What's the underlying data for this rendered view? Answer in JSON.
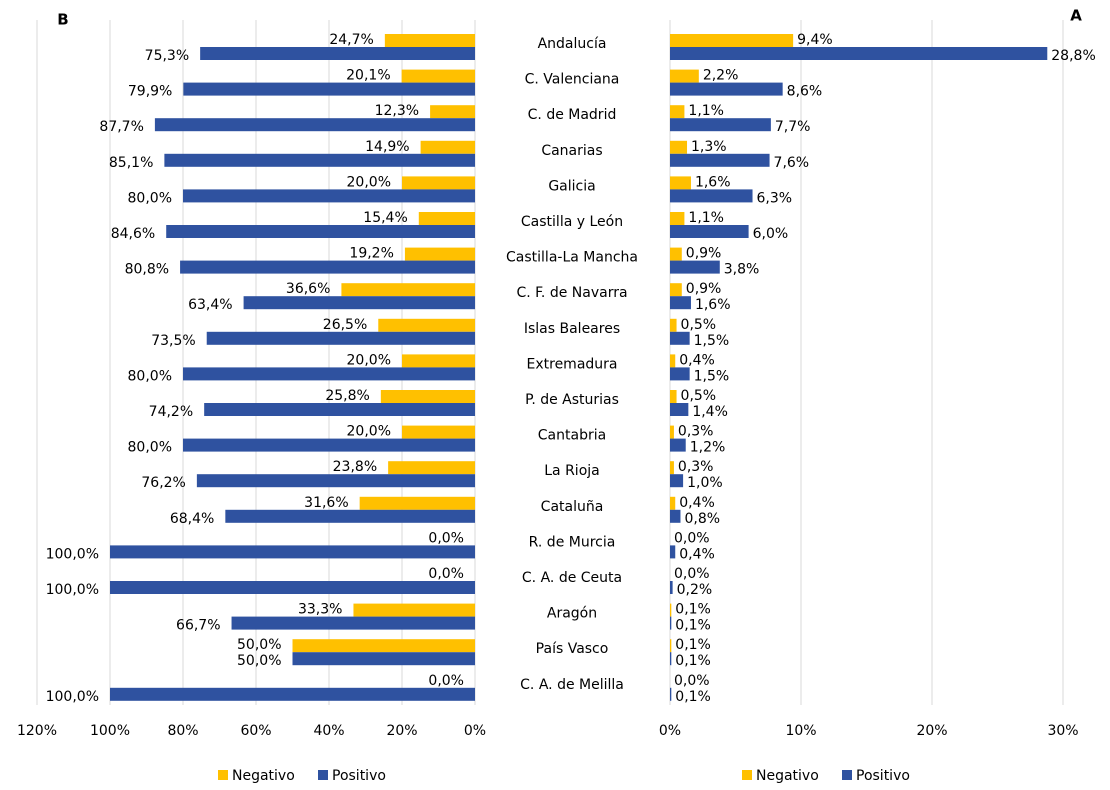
{
  "chart_data": [
    {
      "type": "bar",
      "orientation": "horizontal",
      "x_reversed": true,
      "title": "B",
      "categories": [
        "Andalucía",
        "C. Valenciana",
        "C. de Madrid",
        "Canarias",
        "Galicia",
        "Castilla y León",
        "Castilla-La Mancha",
        "C. F. de Navarra",
        "Islas Baleares",
        "Extremadura",
        "P. de Asturias",
        "Cantabria",
        "La Rioja",
        "Cataluña",
        "R. de Murcia",
        "C. A. de Ceuta",
        "Aragón",
        "País Vasco",
        "C. A. de Melilla"
      ],
      "series": [
        {
          "name": "Negativo",
          "color": "#ffc000",
          "values": [
            24.7,
            20.1,
            12.3,
            14.9,
            20.0,
            15.4,
            19.2,
            36.6,
            26.5,
            20.0,
            25.8,
            20.0,
            23.8,
            31.6,
            0.0,
            0.0,
            33.3,
            50.0,
            0.0
          ],
          "value_labels": [
            "24,7%",
            "20,1%",
            "12,3%",
            "14,9%",
            "20,0%",
            "15,4%",
            "19,2%",
            "36,6%",
            "26,5%",
            "20,0%",
            "25,8%",
            "20,0%",
            "23,8%",
            "31,6%",
            "0,0%",
            "0,0%",
            "33,3%",
            "50,0%",
            "0,0%"
          ]
        },
        {
          "name": "Positivo",
          "color": "#2f52a0",
          "values": [
            75.3,
            79.9,
            87.7,
            85.1,
            80.0,
            84.6,
            80.8,
            63.4,
            73.5,
            80.0,
            74.2,
            80.0,
            76.2,
            68.4,
            100.0,
            100.0,
            66.7,
            50.0,
            100.0
          ],
          "value_labels": [
            "75,3%",
            "79,9%",
            "87,7%",
            "85,1%",
            "80,0%",
            "84,6%",
            "80,8%",
            "63,4%",
            "73,5%",
            "80,0%",
            "74,2%",
            "80,0%",
            "76,2%",
            "68,4%",
            "100,0%",
            "100,0%",
            "66,7%",
            "50,0%",
            "100,0%"
          ]
        }
      ],
      "xlim": [
        0,
        120
      ],
      "xticks": [
        {
          "value": 0,
          "label": "0%"
        },
        {
          "value": 20,
          "label": "20%"
        },
        {
          "value": 40,
          "label": "40%"
        },
        {
          "value": 60,
          "label": "60%"
        },
        {
          "value": 80,
          "label": "80%"
        },
        {
          "value": 100,
          "label": "100%"
        },
        {
          "value": 120,
          "label": "120%"
        }
      ],
      "grid": true,
      "legend": "bottom"
    },
    {
      "type": "bar",
      "orientation": "horizontal",
      "x_reversed": false,
      "title": "A",
      "series": [
        {
          "name": "Negativo",
          "color": "#ffc000",
          "values": [
            9.4,
            2.2,
            1.1,
            1.3,
            1.6,
            1.1,
            0.9,
            0.9,
            0.5,
            0.4,
            0.5,
            0.3,
            0.3,
            0.4,
            0.0,
            0.0,
            0.1,
            0.1,
            0.0
          ],
          "value_labels": [
            "9,4%",
            "2,2%",
            "1,1%",
            "1,3%",
            "1,6%",
            "1,1%",
            "0,9%",
            "0,9%",
            "0,5%",
            "0,4%",
            "0,5%",
            "0,3%",
            "0,3%",
            "0,4%",
            "0,0%",
            "0,0%",
            "0,1%",
            "0,1%",
            "0,0%"
          ]
        },
        {
          "name": "Positivo",
          "color": "#2f52a0",
          "values": [
            28.8,
            8.6,
            7.7,
            7.6,
            6.3,
            6.0,
            3.8,
            1.6,
            1.5,
            1.5,
            1.4,
            1.2,
            1.0,
            0.8,
            0.4,
            0.2,
            0.1,
            0.1,
            0.1
          ],
          "value_labels": [
            "28,8%",
            "8,6%",
            "7,7%",
            "7,6%",
            "6,3%",
            "6,0%",
            "3,8%",
            "1,6%",
            "1,5%",
            "1,5%",
            "1,4%",
            "1,2%",
            "1,0%",
            "0,8%",
            "0,4%",
            "0,2%",
            "0,1%",
            "0,1%",
            "0,1%"
          ]
        }
      ],
      "xlim": [
        0,
        30
      ],
      "xticks": [
        {
          "value": 0,
          "label": "0%"
        },
        {
          "value": 10,
          "label": "10%"
        },
        {
          "value": 20,
          "label": "20%"
        },
        {
          "value": 30,
          "label": "30%"
        }
      ],
      "grid": true,
      "legend": "bottom"
    }
  ]
}
